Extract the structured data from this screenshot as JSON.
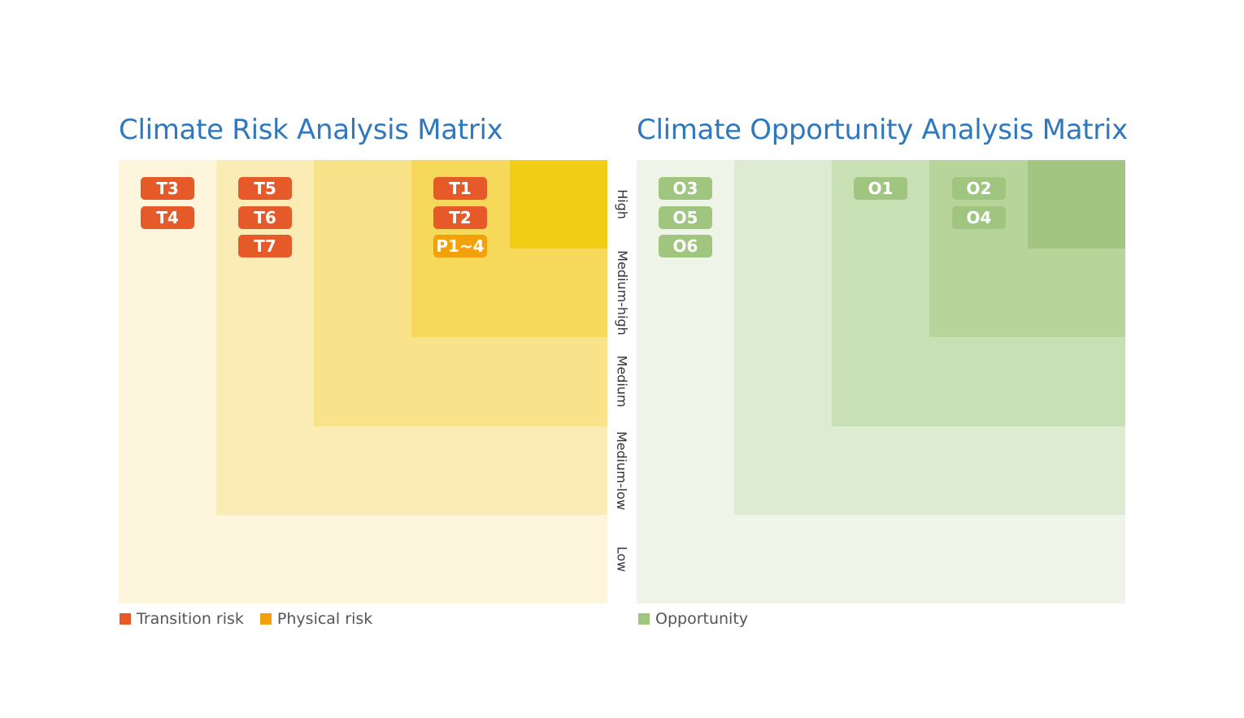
{
  "risk": {
    "title": "Climate Risk Analysis Matrix",
    "colors": {
      "level1": "#fdf6dd",
      "level2": "#fbecb6",
      "level3": "#f8e28a",
      "level4": "#f6d85a",
      "level5": "#f2cd16"
    },
    "tags": {
      "t3": "T3",
      "t4": "T4",
      "t5": "T5",
      "t6": "T6",
      "t7": "T7",
      "t1": "T1",
      "t2": "T2",
      "p": "P1~4"
    },
    "legend": {
      "transition": "Transition risk",
      "physical": "Physical risk"
    },
    "legend_colors": {
      "transition": "#e55a28",
      "physical": "#f3a00b"
    }
  },
  "opportunity": {
    "title": "Climate Opportunity Analysis Matrix",
    "colors": {
      "level1": "#eef5e8",
      "level2": "#ddebd0",
      "level3": "#c9dfb4",
      "level4": "#b7d49b",
      "level5": "#a2c582"
    },
    "tags": {
      "o3": "O3",
      "o5": "O5",
      "o6": "O6",
      "o1": "O1",
      "o2": "O2",
      "o4": "O4"
    },
    "legend": {
      "opportunity": "Opportunity"
    },
    "legend_colors": {
      "opportunity": "#9fc57f"
    }
  },
  "levels": [
    "High",
    "Medium-high",
    "Medium",
    "Medium-low",
    "Low"
  ]
}
